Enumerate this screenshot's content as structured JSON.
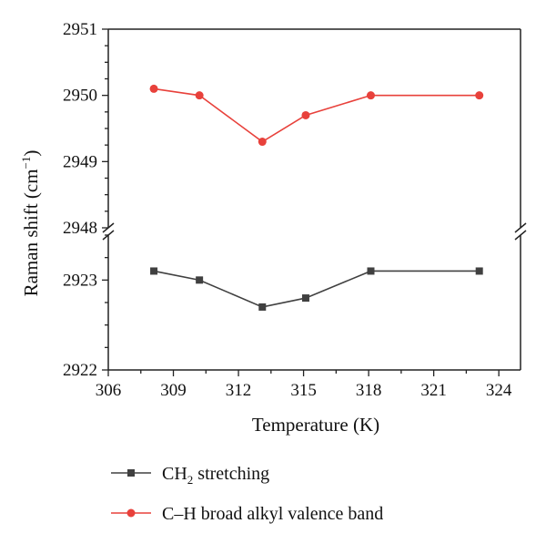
{
  "chart_data": {
    "type": "line",
    "xlabel": "Temperature (K)",
    "ylabel_main": "Raman shift (cm",
    "ylabel_sup": "−1",
    "ylabel_close": ")",
    "xlim": [
      306,
      325
    ],
    "x_ticks": [
      "306",
      "309",
      "312",
      "315",
      "318",
      "321",
      "324"
    ],
    "y_upper": {
      "ylim": [
        2948,
        2951
      ],
      "ticks": [
        "2951",
        "2950",
        "2949",
        "2948"
      ]
    },
    "y_lower": {
      "ylim": [
        2922,
        2923.5
      ],
      "ticks": [
        "2923",
        "2922"
      ]
    },
    "axis_break": true,
    "grid": false,
    "legend_position": "bottom",
    "series": [
      {
        "name": "CH",
        "name_sub": "2",
        "name_rest": " stretching",
        "color": "#404040",
        "marker": "square",
        "panel": "lower",
        "x": [
          308.1,
          310.2,
          313.1,
          315.1,
          318.1,
          323.1
        ],
        "y": [
          2923.1,
          2923.0,
          2922.7,
          2922.8,
          2923.1,
          2923.1
        ]
      },
      {
        "name": "C–H broad alkyl valence band",
        "color": "#e8413b",
        "marker": "circle",
        "panel": "upper",
        "x": [
          308.1,
          310.2,
          313.1,
          315.1,
          318.1,
          323.1
        ],
        "y": [
          2950.1,
          2950.0,
          2949.3,
          2949.7,
          2950.0,
          2950.0
        ]
      }
    ]
  }
}
